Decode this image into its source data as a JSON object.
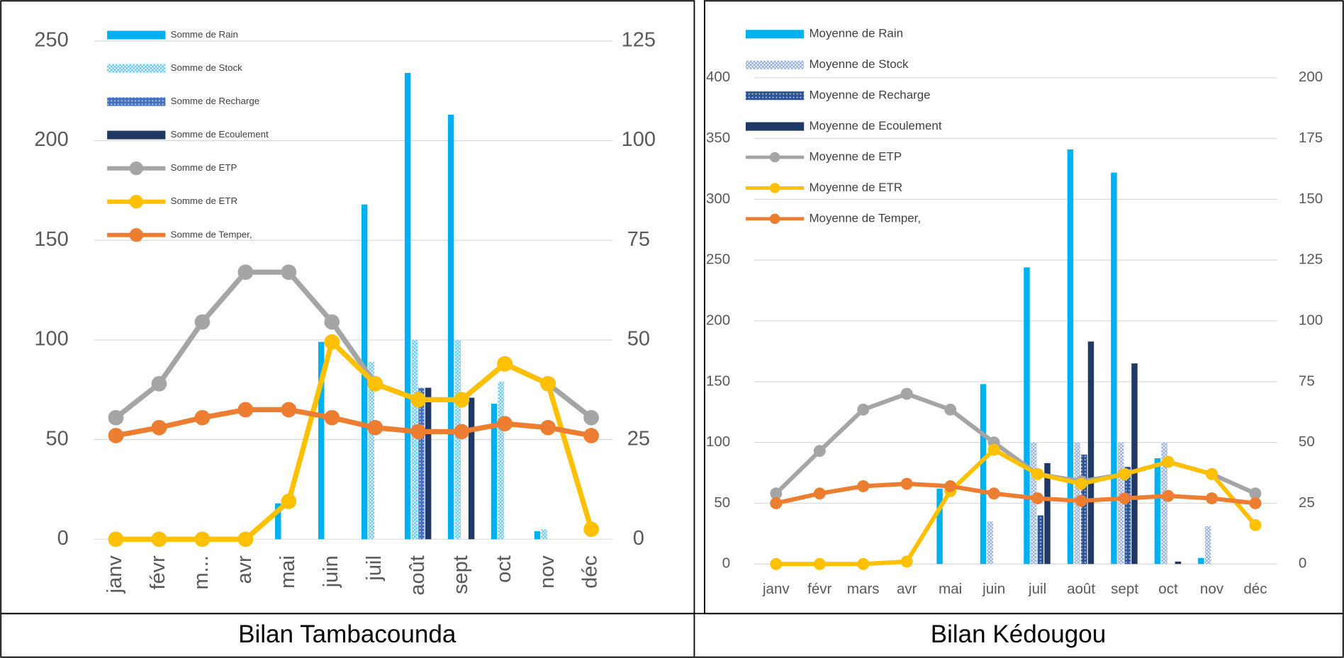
{
  "chart_data": [
    {
      "type": "combo",
      "title": "Bilan Tambacounda",
      "categories": [
        "janv",
        "févr",
        "m...",
        "avr",
        "mai",
        "juin",
        "juil",
        "août",
        "sept",
        "oct",
        "nov",
        "déc"
      ],
      "ylim": [
        0,
        250
      ],
      "yticks": [
        0,
        50,
        100,
        150,
        200,
        250
      ],
      "y2lim": [
        0,
        125
      ],
      "y2ticks": [
        0,
        25,
        50,
        75,
        100,
        125
      ],
      "grid": true,
      "legend": "top-left",
      "series": [
        {
          "name": "Somme de Rain",
          "type": "bar",
          "color": "#00b0f0",
          "values": [
            0,
            0,
            0,
            0,
            18,
            99,
            168,
            234,
            213,
            68,
            4,
            0
          ]
        },
        {
          "name": "Somme de Stock",
          "type": "bar",
          "color": "#5cc8f5",
          "pattern": "crosshatch",
          "values": [
            0,
            0,
            0,
            0,
            0,
            0,
            89,
            100,
            100,
            79,
            5,
            0
          ]
        },
        {
          "name": "Somme de Recharge",
          "type": "bar",
          "color": "#4472c4",
          "pattern": "dots",
          "values": [
            0,
            0,
            0,
            0,
            0,
            0,
            0,
            76,
            0,
            0,
            0,
            0
          ]
        },
        {
          "name": "Somme de Ecoulement",
          "type": "bar",
          "color": "#203864",
          "values": [
            0,
            0,
            0,
            0,
            0,
            0,
            0,
            76,
            71,
            0,
            0,
            0
          ]
        },
        {
          "name": "Somme de ETP",
          "type": "line",
          "axis": "y2",
          "color": "#a5a5a5",
          "values": [
            30.5,
            39,
            54.5,
            67,
            67,
            54.5,
            39,
            35,
            35,
            44,
            39,
            30.5
          ]
        },
        {
          "name": "Somme de ETR",
          "type": "line",
          "axis": "y2",
          "color": "#ffc000",
          "values": [
            0,
            0,
            0,
            0,
            9.5,
            49.5,
            39,
            35,
            35,
            44,
            39,
            2.5
          ]
        },
        {
          "name": "Somme de Temper,",
          "type": "line",
          "axis": "y2",
          "color": "#ed7d31",
          "values": [
            26,
            28,
            30.5,
            32.5,
            32.5,
            30.5,
            28,
            27,
            27,
            29,
            28,
            26
          ]
        }
      ]
    },
    {
      "type": "combo",
      "title": "Bilan Kédougou",
      "categories": [
        "janv",
        "févr",
        "mars",
        "avr",
        "mai",
        "juin",
        "juil",
        "août",
        "sept",
        "oct",
        "nov",
        "déc"
      ],
      "ylim": [
        0,
        400
      ],
      "yticks": [
        0,
        50,
        100,
        150,
        200,
        250,
        300,
        350,
        400
      ],
      "y2lim": [
        0,
        200
      ],
      "y2ticks": [
        0,
        25,
        50,
        75,
        100,
        125,
        150,
        175,
        200
      ],
      "grid": true,
      "legend": "top-left",
      "series": [
        {
          "name": "Moyenne de Rain",
          "type": "bar",
          "color": "#00b0f0",
          "values": [
            0,
            0,
            0,
            0,
            62,
            148,
            244,
            341,
            322,
            87,
            5,
            0
          ]
        },
        {
          "name": "Moyenne de Stock",
          "type": "bar",
          "color": "#8faadc",
          "pattern": "crosshatch",
          "values": [
            0,
            0,
            0,
            0,
            0,
            35,
            100,
            100,
            100,
            100,
            31,
            0
          ]
        },
        {
          "name": "Moyenne de Recharge",
          "type": "bar",
          "color": "#2f5597",
          "pattern": "dots",
          "values": [
            0,
            0,
            0,
            0,
            0,
            0,
            40,
            90,
            80,
            0,
            0,
            0
          ]
        },
        {
          "name": "Moyenne de Ecoulement",
          "type": "bar",
          "color": "#203864",
          "values": [
            0,
            0,
            0,
            0,
            0,
            0,
            83,
            183,
            165,
            2,
            0,
            0
          ]
        },
        {
          "name": "Moyenne de ETP",
          "type": "line",
          "axis": "y2",
          "color": "#a5a5a5",
          "values": [
            29,
            46.5,
            63.5,
            70,
            63.5,
            50,
            37,
            34,
            37,
            42,
            37,
            29
          ]
        },
        {
          "name": "Moyenne de ETR",
          "type": "line",
          "axis": "y2",
          "color": "#ffc000",
          "values": [
            0,
            0,
            0,
            1,
            30,
            47,
            37,
            33,
            37,
            42,
            37,
            16
          ]
        },
        {
          "name": "Moyenne de Temper,",
          "type": "line",
          "axis": "y2",
          "color": "#ed7d31",
          "values": [
            25,
            29,
            32,
            33,
            32,
            29,
            27,
            26,
            27,
            28,
            27,
            25
          ]
        }
      ]
    }
  ]
}
